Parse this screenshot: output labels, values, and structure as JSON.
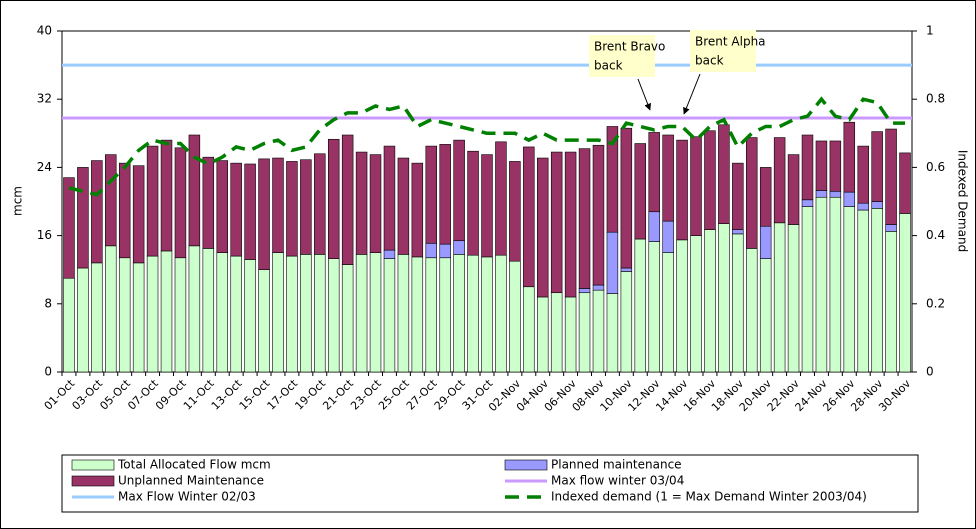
{
  "chart_data": {
    "type": "bar",
    "stacked": true,
    "categories": [
      "01-Oct",
      null,
      "03-Oct",
      null,
      "05-Oct",
      null,
      "07-Oct",
      null,
      "09-Oct",
      null,
      "11-Oct",
      null,
      "13-Oct",
      null,
      "15-Oct",
      null,
      "17-Oct",
      null,
      "19-Oct",
      null,
      "21-Oct",
      null,
      "23-Oct",
      null,
      "25-Oct",
      null,
      "27-Oct",
      null,
      "29-Oct",
      null,
      "31-Oct",
      null,
      "02-Nov",
      null,
      "04-Nov",
      null,
      "06-Nov",
      null,
      "08-Nov",
      null,
      "10-Nov",
      null,
      "12-Nov",
      null,
      "14-Nov",
      null,
      "16-Nov",
      null,
      "18-Nov",
      null,
      "20-Nov",
      null,
      "22-Nov",
      null,
      "24-Nov",
      null,
      "26-Nov",
      null,
      "28-Nov",
      null,
      "30-Nov"
    ],
    "ylim": [
      0,
      40
    ],
    "yticks": [
      0,
      8,
      16,
      24,
      32,
      40
    ],
    "y2lim": [
      0,
      1
    ],
    "y2ticks": [
      0,
      0.2,
      0.4,
      0.6,
      0.8,
      1
    ],
    "ylabel": "mcm",
    "y2label": "Indexed Demand",
    "series": [
      {
        "name": "Total Allocated Flow mcm",
        "color": "#ccffcc",
        "values": [
          11,
          12.2,
          12.8,
          14.8,
          13.4,
          12.8,
          13.6,
          14.2,
          13.4,
          14.8,
          14.5,
          14,
          13.6,
          13.2,
          12,
          14,
          13.6,
          13.8,
          13.8,
          13.3,
          12.6,
          13.8,
          14,
          13.3,
          13.8,
          13.5,
          13.4,
          13.4,
          13.8,
          13.7,
          13.5,
          13.7,
          13,
          10,
          8.8,
          9.3,
          8.8,
          9.3,
          9.6,
          9.2,
          11.8,
          15.6,
          15.3,
          14,
          15.5,
          16,
          16.7,
          17.4,
          16.2,
          14.5,
          13.3,
          17.5,
          17.3,
          19.4,
          20.5,
          20.5,
          19.4,
          19,
          19.2,
          16.5,
          18.6
        ]
      },
      {
        "name": "Planned maintenance",
        "color": "#9999ff",
        "values": [
          0,
          0,
          0,
          0,
          0,
          0,
          0,
          0,
          0,
          0,
          0,
          0,
          0,
          0,
          0,
          0,
          0,
          0,
          0,
          0,
          0,
          0,
          0,
          1,
          0,
          0,
          1.7,
          1.6,
          1.6,
          0,
          0,
          0,
          0,
          0,
          0,
          0,
          0,
          0.5,
          0.6,
          7.2,
          0.4,
          0,
          3.5,
          3.7,
          0,
          0,
          0,
          0,
          0.5,
          0,
          3.8,
          0,
          0,
          0.8,
          0.8,
          0.7,
          1.7,
          0.8,
          0.8,
          0.8,
          0
        ]
      },
      {
        "name": "Unplanned Maintenance",
        "color": "#993366",
        "values": [
          11.8,
          11.8,
          12,
          10.7,
          11.1,
          11.4,
          12.9,
          13,
          12.9,
          13,
          10.7,
          10.8,
          10.9,
          11.2,
          13,
          11.1,
          11.1,
          11.1,
          11.8,
          14,
          15.2,
          12,
          11.5,
          12.2,
          11.3,
          11,
          11.4,
          11.7,
          11.8,
          12.2,
          12,
          13.3,
          11.7,
          16.4,
          16.3,
          16.5,
          17,
          16.4,
          16.4,
          12.4,
          16.4,
          11.2,
          9.3,
          10.1,
          11.7,
          11.6,
          11.6,
          11.6,
          7.8,
          13,
          6.9,
          10,
          8.2,
          7.6,
          5.8,
          5.9,
          8.2,
          6.7,
          8.2,
          11.2,
          7.1
        ]
      },
      {
        "name": "Indexed demand (1 = Max Demand Winter 2003/04)",
        "type": "line",
        "dashed": true,
        "axis": "y2",
        "color": "#008000",
        "values": [
          0.54,
          0.53,
          0.52,
          0.56,
          0.6,
          0.65,
          0.68,
          0.67,
          0.67,
          0.63,
          0.61,
          0.63,
          0.66,
          0.65,
          0.67,
          0.68,
          0.65,
          0.66,
          0.71,
          0.74,
          0.76,
          0.76,
          0.78,
          0.77,
          0.78,
          0.72,
          0.74,
          0.73,
          0.72,
          0.71,
          0.7,
          0.7,
          0.7,
          0.68,
          0.7,
          0.68,
          0.68,
          0.68,
          0.68,
          0.67,
          0.73,
          0.72,
          0.71,
          0.72,
          0.72,
          0.68,
          0.72,
          0.74,
          0.66,
          0.7,
          0.72,
          0.72,
          0.74,
          0.75,
          0.8,
          0.75,
          0.74,
          0.8,
          0.79,
          0.73,
          0.73
        ]
      }
    ],
    "reference_lines": [
      {
        "name": "Max Flow Winter 02/03",
        "color": "#99ccff",
        "value": 36
      },
      {
        "name": "Max flow winter 03/04",
        "color": "#cc99ff",
        "value": 29.8
      }
    ],
    "annotations": [
      {
        "text_lines": [
          "Brent Bravo",
          "back"
        ]
      },
      {
        "text_lines": [
          "Brent Alpha",
          "back"
        ]
      }
    ]
  }
}
